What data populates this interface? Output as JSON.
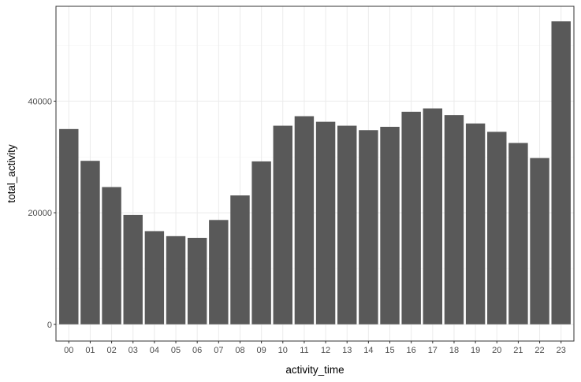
{
  "chart_data": {
    "type": "bar",
    "title": "",
    "xlabel": "activity_time",
    "ylabel": "total_activity",
    "categories": [
      "00",
      "01",
      "02",
      "03",
      "04",
      "05",
      "06",
      "07",
      "08",
      "09",
      "10",
      "11",
      "12",
      "13",
      "14",
      "15",
      "16",
      "17",
      "18",
      "19",
      "20",
      "21",
      "22",
      "23"
    ],
    "values": [
      35000,
      29300,
      24600,
      19600,
      16700,
      15800,
      15500,
      18700,
      23100,
      29200,
      35600,
      37300,
      36300,
      35600,
      34800,
      35400,
      38100,
      38700,
      37500,
      36000,
      34500,
      32500,
      29800,
      54300
    ],
    "ylim": [
      -3000,
      57000
    ],
    "y_ticks": [
      0,
      20000,
      40000
    ],
    "grid": true,
    "bar_color": "#595959",
    "grid_color": "#ebebeb",
    "panel_border_color": "#333333"
  }
}
